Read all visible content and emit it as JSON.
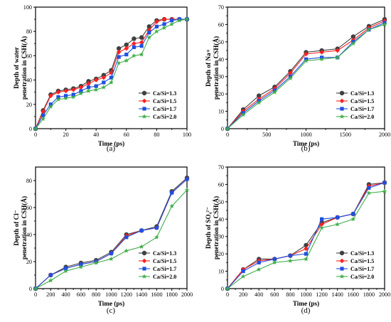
{
  "chart_data": [
    {
      "type": "line",
      "panel_label": "(a)",
      "xlabel": "Time (ps)",
      "ylabel_line1": "Depth of water",
      "ylabel_line2": "penetration in CSH(Å)",
      "xlim": [
        0,
        100
      ],
      "ylim": [
        0,
        100
      ],
      "xticks": [
        0,
        20,
        40,
        60,
        80,
        100
      ],
      "yticks": [
        0,
        20,
        40,
        60,
        80,
        100
      ],
      "legend_position": "lower-right",
      "x": [
        0,
        5,
        10,
        15,
        20,
        25,
        30,
        35,
        40,
        45,
        50,
        55,
        60,
        65,
        70,
        75,
        80,
        85,
        90,
        95,
        100
      ],
      "series": [
        {
          "name": "Ca/Si=1.3",
          "color": "#404040",
          "marker": "circle",
          "values": [
            0,
            15,
            28,
            31,
            32,
            33,
            35,
            39,
            41,
            44,
            48,
            66,
            69,
            74,
            75,
            84,
            89,
            90,
            90,
            90,
            90
          ]
        },
        {
          "name": "Ca/Si=1.5",
          "color": "#ff2020",
          "marker": "diamond",
          "values": [
            0,
            14,
            27,
            30,
            31,
            32,
            34,
            37,
            40,
            42,
            46,
            63,
            66,
            70,
            71,
            81,
            88,
            90,
            90,
            90,
            90
          ]
        },
        {
          "name": "Ca/Si=1.7",
          "color": "#1f4fe0",
          "marker": "square",
          "values": [
            0,
            11,
            20,
            26,
            27,
            28,
            31,
            34,
            35,
            38,
            42,
            59,
            61,
            67,
            68,
            79,
            84,
            86,
            89,
            90,
            90
          ]
        },
        {
          "name": "Ca/Si=2.0",
          "color": "#3fae49",
          "marker": "star",
          "values": [
            0,
            8,
            18,
            24,
            25,
            26,
            29,
            31,
            32,
            34,
            38,
            54,
            56,
            60,
            61,
            75,
            80,
            83,
            86,
            89,
            90
          ]
        }
      ]
    },
    {
      "type": "line",
      "panel_label": "(b)",
      "xlabel": "Time (ps)",
      "ylabel_line1": "Depth of Na+",
      "ylabel_line2": "penetration in CSH(Å)",
      "xlim": [
        0,
        2000
      ],
      "ylim": [
        0,
        70
      ],
      "xticks": [
        0,
        500,
        1000,
        1500,
        2000
      ],
      "yticks": [
        0,
        10,
        20,
        30,
        40,
        50,
        60,
        70
      ],
      "legend_position": "lower-right",
      "x": [
        0,
        200,
        400,
        600,
        800,
        1000,
        1200,
        1400,
        1600,
        1800,
        2000
      ],
      "series": [
        {
          "name": "Ca/Si=1.3",
          "color": "#404040",
          "marker": "circle",
          "values": [
            0,
            11,
            19,
            24,
            33,
            44,
            45,
            46,
            53,
            59,
            63
          ]
        },
        {
          "name": "Ca/Si=1.5",
          "color": "#ff2020",
          "marker": "diamond",
          "values": [
            0,
            10,
            17,
            23,
            32,
            43,
            44,
            45,
            51,
            58,
            62
          ]
        },
        {
          "name": "Ca/Si=1.7",
          "color": "#1f4fe0",
          "marker": "square",
          "values": [
            0,
            9,
            16,
            22,
            30,
            40,
            41,
            41,
            50,
            57,
            61
          ]
        },
        {
          "name": "Ca/Si=2.0",
          "color": "#3fae49",
          "marker": "star",
          "values": [
            0,
            8,
            15,
            21,
            29,
            39,
            40,
            41,
            49,
            57,
            60
          ]
        }
      ]
    },
    {
      "type": "line",
      "panel_label": "(c)",
      "xlabel": "Time (ps)",
      "ylabel_line1": "Depth of Cl⁻",
      "ylabel_line2": "penetration in CSH(Å)",
      "xlim": [
        0,
        2000
      ],
      "ylim": [
        0,
        90
      ],
      "xticks": [
        0,
        200,
        400,
        600,
        800,
        1000,
        1200,
        1400,
        1600,
        1800,
        2000
      ],
      "yticks": [
        0,
        20,
        40,
        60,
        80
      ],
      "legend_position": "lower-right",
      "x": [
        0,
        200,
        400,
        600,
        800,
        1000,
        1200,
        1400,
        1600,
        1800,
        2000
      ],
      "series": [
        {
          "name": "Ca/Si=1.3",
          "color": "#404040",
          "marker": "circle",
          "values": [
            0,
            10,
            16,
            19,
            21,
            27,
            40,
            43,
            46,
            72,
            82
          ]
        },
        {
          "name": "Ca/Si=1.5",
          "color": "#ff2020",
          "marker": "diamond",
          "values": [
            0,
            10,
            15,
            18,
            20,
            26,
            39,
            43,
            45,
            71,
            81
          ]
        },
        {
          "name": "Ca/Si=1.7",
          "color": "#1f4fe0",
          "marker": "square",
          "values": [
            0,
            10,
            15,
            18,
            20,
            26,
            38,
            43,
            45,
            71,
            81
          ]
        },
        {
          "name": "Ca/Si=2.0",
          "color": "#3fae49",
          "marker": "star",
          "values": [
            0,
            6,
            13,
            16,
            19,
            22,
            28,
            31,
            38,
            61,
            73
          ]
        }
      ]
    },
    {
      "type": "line",
      "panel_label": "(d)",
      "xlabel": "Time (ps)",
      "ylabel_line1": "Depth of SO₄²⁻",
      "ylabel_line2": "penetration in CSH(Å)",
      "xlim": [
        0,
        2000
      ],
      "ylim": [
        0,
        70
      ],
      "xticks": [
        0,
        200,
        400,
        600,
        800,
        1000,
        1200,
        1400,
        1600,
        1800,
        2000
      ],
      "yticks": [
        0,
        10,
        20,
        30,
        40,
        50,
        60,
        70
      ],
      "legend_position": "lower-right",
      "x": [
        0,
        200,
        400,
        600,
        800,
        1000,
        1200,
        1400,
        1600,
        1800,
        2000
      ],
      "series": [
        {
          "name": "Ca/Si=1.3",
          "color": "#404040",
          "marker": "circle",
          "values": [
            0,
            11,
            17,
            17,
            19,
            25,
            38,
            41,
            43,
            60,
            61
          ]
        },
        {
          "name": "Ca/Si=1.5",
          "color": "#ff2020",
          "marker": "diamond",
          "values": [
            0,
            11,
            16,
            17,
            19,
            23,
            37,
            41,
            43,
            59,
            61
          ]
        },
        {
          "name": "Ca/Si=1.7",
          "color": "#1f4fe0",
          "marker": "square",
          "values": [
            0,
            10,
            15,
            17,
            19,
            20,
            40,
            41,
            43,
            58,
            61
          ]
        },
        {
          "name": "Ca/Si=2.0",
          "color": "#3fae49",
          "marker": "star",
          "values": [
            0,
            7,
            11,
            15,
            16,
            17,
            35,
            37,
            40,
            55,
            56
          ]
        }
      ]
    }
  ]
}
